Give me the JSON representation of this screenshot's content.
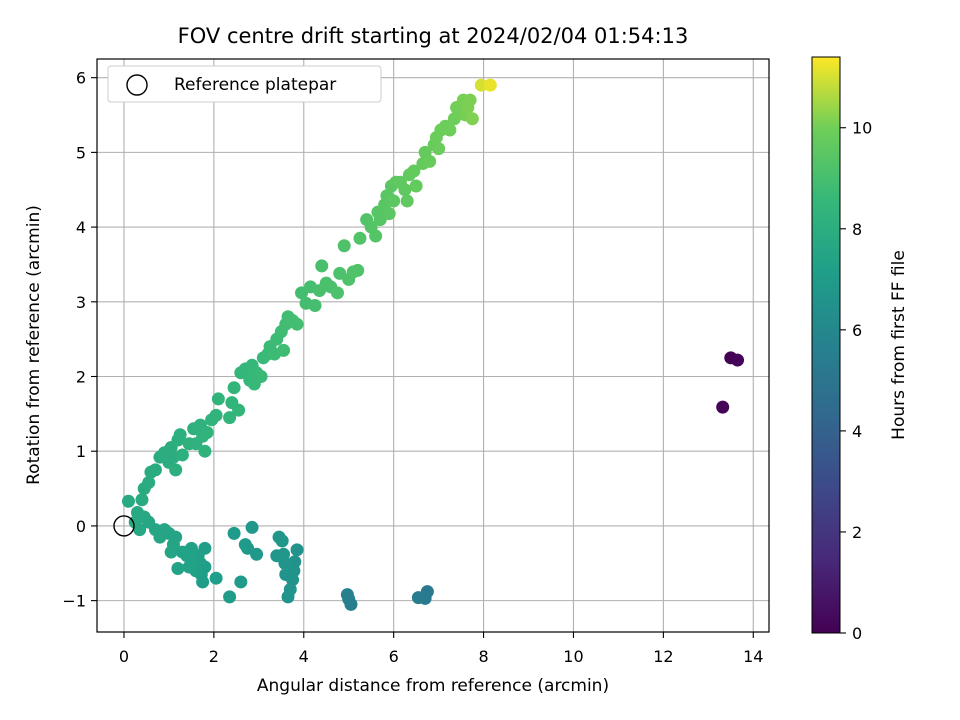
{
  "chart_data": {
    "type": "scatter",
    "title": "FOV centre drift starting at 2024/02/04 01:54:13",
    "xlabel": "Angular distance from reference (arcmin)",
    "ylabel": "Rotation from reference (arcmin)",
    "xlim": [
      -0.6,
      14.35
    ],
    "ylim": [
      -1.42,
      6.25
    ],
    "xticks": [
      0,
      2,
      4,
      6,
      8,
      10,
      12,
      14
    ],
    "yticks": [
      -1,
      0,
      1,
      2,
      3,
      4,
      5,
      6
    ],
    "xtick_labels": [
      "0",
      "2",
      "4",
      "6",
      "8",
      "10",
      "12",
      "14"
    ],
    "ytick_labels": [
      "−1",
      "0",
      "1",
      "2",
      "3",
      "4",
      "5",
      "6"
    ],
    "grid": true,
    "legend": {
      "position": "top-left",
      "entries": [
        "Reference platepar"
      ]
    },
    "colorbar": {
      "label": "Hours from first FF file",
      "colormap": "viridis",
      "range": [
        0,
        11.4
      ],
      "ticks": [
        0,
        2,
        4,
        6,
        8,
        10
      ],
      "tick_labels": [
        "0",
        "2",
        "4",
        "6",
        "8",
        "10"
      ]
    },
    "reference_point": {
      "x": 0,
      "y": 0
    },
    "series": [
      {
        "points": [
          [
            13.5,
            2.25,
            0.05
          ],
          [
            13.65,
            2.22,
            0.1
          ],
          [
            13.32,
            1.59,
            0.15
          ],
          [
            6.75,
            -0.88,
            5.2
          ],
          [
            6.7,
            -0.97,
            5.25
          ],
          [
            6.55,
            -0.96,
            5.3
          ],
          [
            5.05,
            -1.05,
            5.5
          ],
          [
            5.0,
            -0.98,
            5.55
          ],
          [
            4.97,
            -0.92,
            5.6
          ],
          [
            3.85,
            -0.32,
            6.5
          ],
          [
            3.8,
            -0.48,
            6.5
          ],
          [
            3.78,
            -0.6,
            6.55
          ],
          [
            3.75,
            -0.72,
            6.55
          ],
          [
            3.7,
            -0.85,
            6.6
          ],
          [
            3.65,
            -0.95,
            6.6
          ],
          [
            3.6,
            -0.65,
            6.65
          ],
          [
            3.58,
            -0.5,
            6.65
          ],
          [
            3.55,
            -0.38,
            6.7
          ],
          [
            3.52,
            -0.2,
            6.7
          ],
          [
            3.45,
            -0.15,
            6.75
          ],
          [
            3.4,
            -0.4,
            6.75
          ],
          [
            2.95,
            -0.38,
            6.85
          ],
          [
            2.85,
            -0.02,
            6.85
          ],
          [
            2.75,
            -0.3,
            6.9
          ],
          [
            2.7,
            -0.25,
            6.9
          ],
          [
            2.6,
            -0.75,
            6.95
          ],
          [
            2.45,
            -0.1,
            6.95
          ],
          [
            2.35,
            -0.95,
            7.0
          ],
          [
            2.05,
            -0.7,
            7.1
          ],
          [
            1.8,
            -0.3,
            7.1
          ],
          [
            1.8,
            -0.55,
            7.15
          ],
          [
            1.75,
            -0.75,
            7.15
          ],
          [
            1.72,
            -0.65,
            7.2
          ],
          [
            1.7,
            -0.5,
            7.2
          ],
          [
            1.65,
            -0.4,
            7.25
          ],
          [
            1.6,
            -0.6,
            7.25
          ],
          [
            1.55,
            -0.45,
            7.3
          ],
          [
            1.5,
            -0.3,
            7.3
          ],
          [
            1.45,
            -0.55,
            7.35
          ],
          [
            1.4,
            -0.4,
            7.35
          ],
          [
            1.3,
            -0.35,
            7.4
          ],
          [
            1.2,
            -0.57,
            7.4
          ],
          [
            1.15,
            -0.15,
            7.45
          ],
          [
            1.1,
            -0.25,
            7.45
          ],
          [
            1.05,
            -0.35,
            7.5
          ],
          [
            1.0,
            -0.1,
            7.5
          ],
          [
            0.9,
            -0.05,
            7.55
          ],
          [
            0.8,
            -0.15,
            7.55
          ],
          [
            0.7,
            -0.05,
            7.6
          ],
          [
            0.55,
            0.05,
            7.6
          ],
          [
            0.45,
            0.12,
            7.65
          ],
          [
            0.35,
            -0.05,
            7.65
          ],
          [
            0.3,
            0.18,
            7.7
          ],
          [
            0.25,
            0.05,
            7.7
          ],
          [
            0.1,
            0.33,
            7.75
          ],
          [
            0.4,
            0.35,
            7.8
          ],
          [
            0.45,
            0.5,
            7.8
          ],
          [
            0.55,
            0.58,
            7.85
          ],
          [
            0.6,
            0.72,
            7.85
          ],
          [
            0.7,
            0.75,
            7.9
          ],
          [
            0.8,
            0.92,
            7.9
          ],
          [
            0.9,
            0.98,
            7.95
          ],
          [
            1.0,
            0.85,
            7.95
          ],
          [
            1.05,
            1.05,
            8.0
          ],
          [
            1.1,
            0.92,
            8.0
          ],
          [
            1.15,
            0.75,
            8.05
          ],
          [
            1.2,
            1.15,
            8.05
          ],
          [
            1.25,
            1.22,
            8.1
          ],
          [
            1.3,
            0.95,
            8.1
          ],
          [
            1.45,
            1.1,
            8.15
          ],
          [
            1.55,
            1.3,
            8.15
          ],
          [
            1.6,
            1.1,
            8.2
          ],
          [
            1.7,
            1.35,
            8.2
          ],
          [
            1.75,
            1.2,
            8.25
          ],
          [
            1.8,
            1.0,
            8.25
          ],
          [
            1.85,
            1.25,
            8.3
          ],
          [
            1.95,
            1.42,
            8.3
          ],
          [
            2.05,
            1.48,
            8.35
          ],
          [
            2.1,
            1.7,
            8.35
          ],
          [
            2.35,
            1.45,
            8.4
          ],
          [
            2.4,
            1.65,
            8.4
          ],
          [
            2.45,
            1.85,
            8.45
          ],
          [
            2.55,
            1.55,
            8.45
          ],
          [
            2.6,
            2.05,
            8.5
          ],
          [
            2.7,
            2.1,
            8.5
          ],
          [
            2.8,
            1.95,
            8.55
          ],
          [
            2.85,
            2.15,
            8.55
          ],
          [
            2.9,
            1.9,
            8.6
          ],
          [
            2.95,
            2.05,
            8.6
          ],
          [
            3.05,
            2.0,
            8.65
          ],
          [
            3.1,
            2.25,
            8.65
          ],
          [
            3.2,
            2.3,
            8.7
          ],
          [
            3.25,
            2.4,
            8.7
          ],
          [
            3.35,
            2.3,
            8.75
          ],
          [
            3.4,
            2.5,
            8.75
          ],
          [
            3.5,
            2.6,
            8.8
          ],
          [
            3.55,
            2.35,
            8.8
          ],
          [
            3.6,
            2.7,
            8.85
          ],
          [
            3.65,
            2.8,
            8.85
          ],
          [
            3.75,
            2.75,
            8.9
          ],
          [
            3.85,
            2.7,
            8.9
          ],
          [
            3.95,
            3.12,
            8.95
          ],
          [
            4.05,
            2.98,
            8.95
          ],
          [
            4.15,
            3.2,
            9.0
          ],
          [
            4.25,
            2.95,
            9.0
          ],
          [
            4.35,
            3.15,
            9.05
          ],
          [
            4.4,
            3.48,
            9.05
          ],
          [
            4.5,
            3.25,
            9.1
          ],
          [
            4.6,
            3.2,
            9.1
          ],
          [
            4.75,
            3.12,
            9.15
          ],
          [
            4.8,
            3.38,
            9.15
          ],
          [
            4.9,
            3.75,
            9.2
          ],
          [
            5.0,
            3.3,
            9.2
          ],
          [
            5.1,
            3.4,
            9.25
          ],
          [
            5.2,
            3.42,
            9.25
          ],
          [
            5.25,
            3.85,
            9.3
          ],
          [
            5.4,
            4.1,
            9.3
          ],
          [
            5.5,
            4.0,
            9.35
          ],
          [
            5.6,
            3.88,
            9.35
          ],
          [
            5.65,
            4.2,
            9.4
          ],
          [
            5.7,
            4.1,
            9.4
          ],
          [
            5.8,
            4.3,
            9.45
          ],
          [
            5.85,
            4.42,
            9.45
          ],
          [
            5.9,
            4.18,
            9.5
          ],
          [
            5.95,
            4.55,
            9.5
          ],
          [
            6.0,
            4.35,
            9.55
          ],
          [
            6.05,
            4.6,
            9.55
          ],
          [
            6.15,
            4.6,
            9.6
          ],
          [
            6.25,
            4.5,
            9.6
          ],
          [
            6.3,
            4.35,
            9.65
          ],
          [
            6.35,
            4.7,
            9.65
          ],
          [
            6.45,
            4.75,
            9.7
          ],
          [
            6.5,
            4.55,
            9.7
          ],
          [
            6.65,
            4.85,
            9.75
          ],
          [
            6.7,
            5.0,
            9.75
          ],
          [
            6.8,
            4.88,
            9.8
          ],
          [
            6.9,
            5.1,
            9.8
          ],
          [
            6.95,
            5.2,
            9.85
          ],
          [
            7.0,
            5.05,
            9.85
          ],
          [
            7.05,
            5.3,
            9.9
          ],
          [
            7.15,
            5.35,
            9.9
          ],
          [
            7.25,
            5.3,
            9.95
          ],
          [
            7.35,
            5.45,
            9.95
          ],
          [
            7.4,
            5.6,
            10.0
          ],
          [
            7.5,
            5.52,
            10.0
          ],
          [
            7.55,
            5.7,
            10.05
          ],
          [
            7.6,
            5.5,
            10.05
          ],
          [
            7.65,
            5.6,
            10.1
          ],
          [
            7.7,
            5.7,
            10.1
          ],
          [
            7.75,
            5.45,
            10.15
          ],
          [
            7.95,
            5.9,
            11.0
          ],
          [
            8.15,
            5.9,
            11.2
          ]
        ]
      }
    ]
  }
}
